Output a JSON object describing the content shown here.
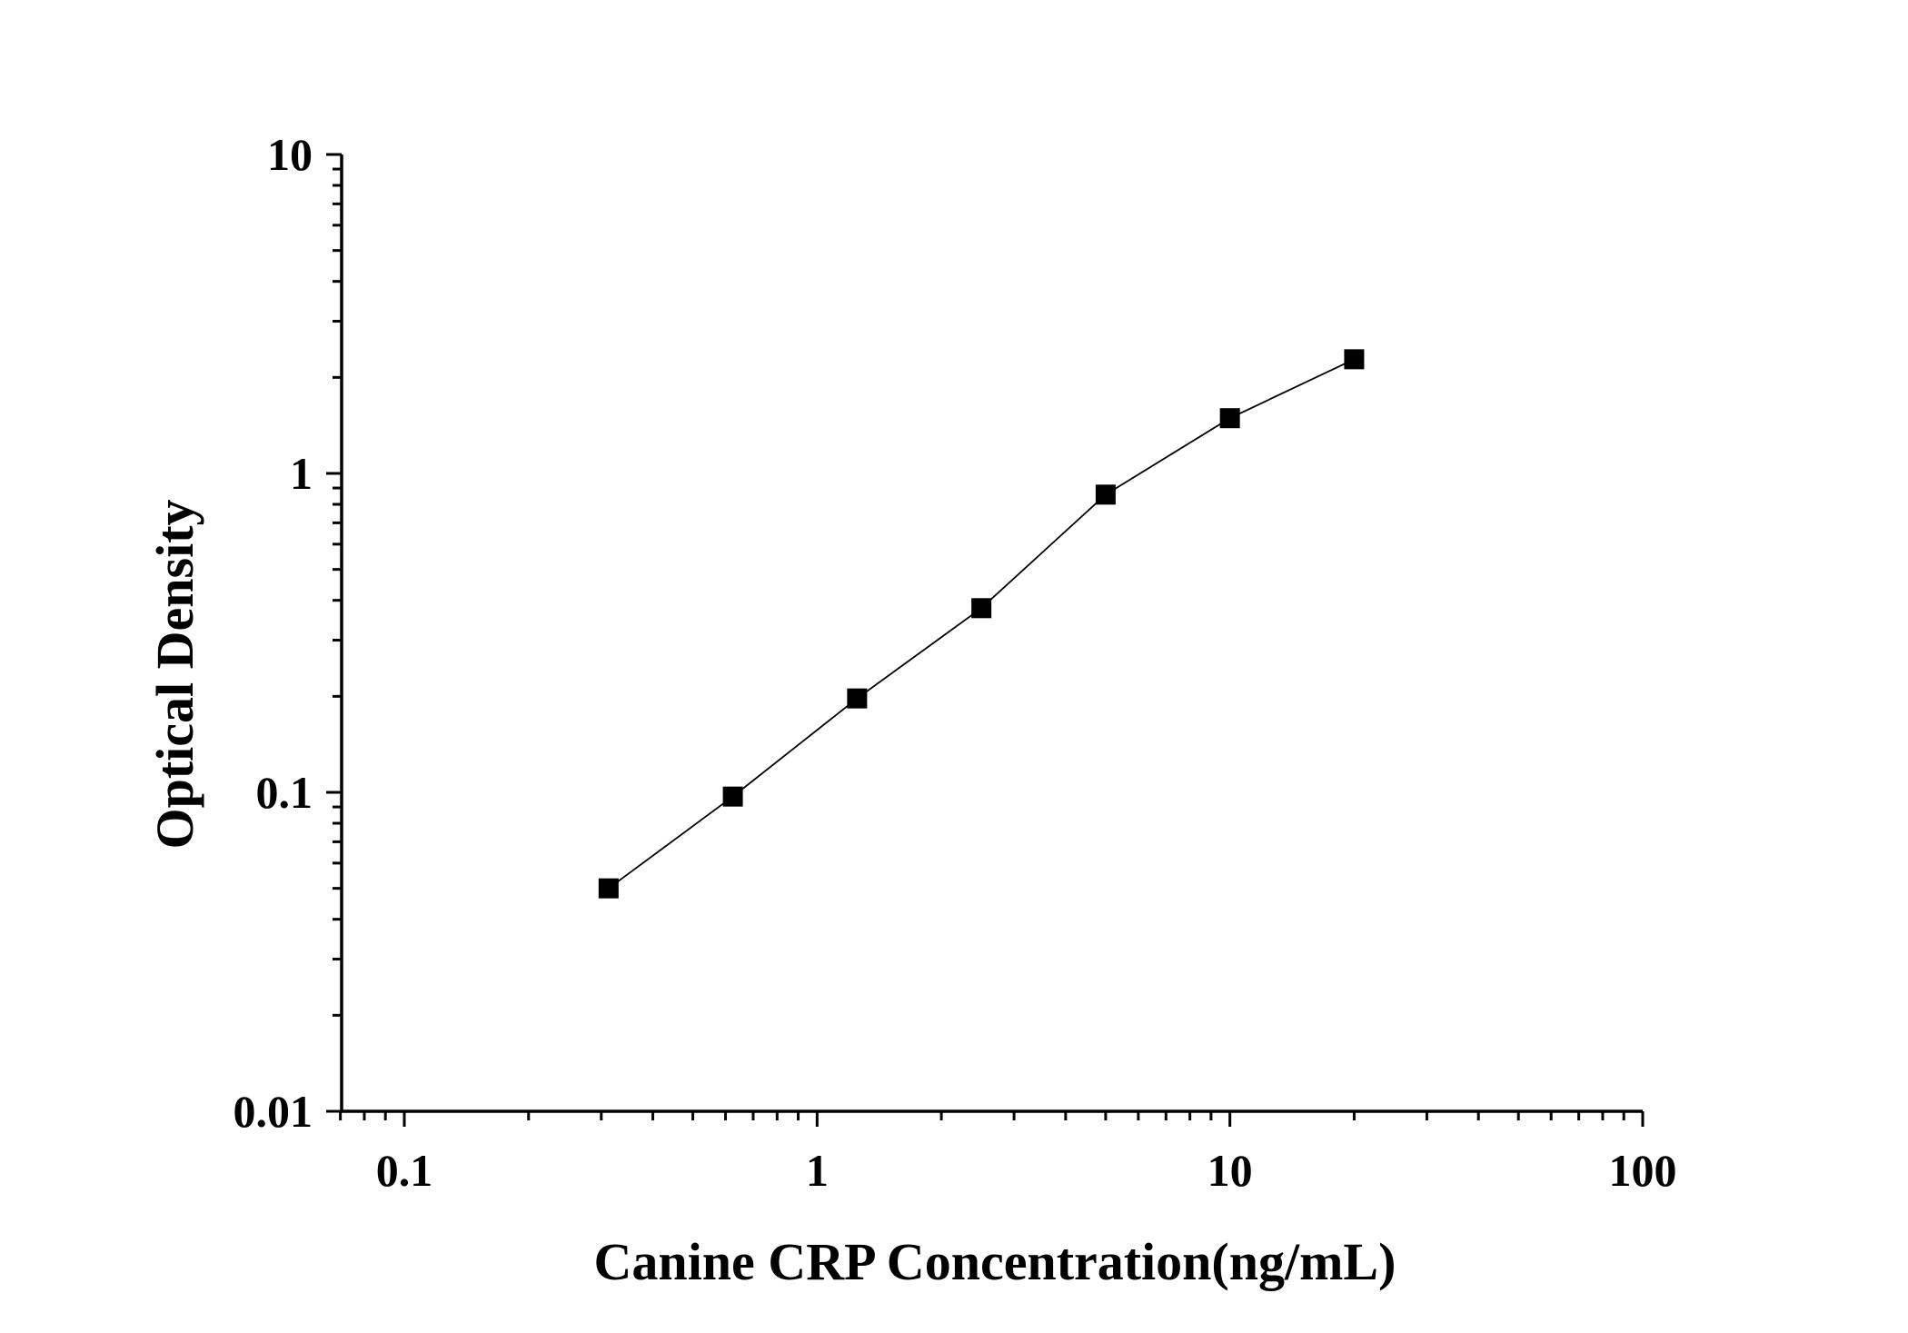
{
  "chart_data": {
    "type": "line",
    "title": "",
    "xlabel": "Canine CRP Concentration(ng/mL)",
    "ylabel": "Optical Density",
    "x_scale": "log",
    "y_scale": "log",
    "xlim": [
      0.07,
      100
    ],
    "ylim": [
      0.01,
      10
    ],
    "x_ticks": [
      {
        "value": 0.1,
        "label": "0.1"
      },
      {
        "value": 1,
        "label": "1"
      },
      {
        "value": 10,
        "label": "10"
      },
      {
        "value": 100,
        "label": "100"
      }
    ],
    "y_ticks": [
      {
        "value": 0.01,
        "label": "0.01"
      },
      {
        "value": 0.1,
        "label": "0.1"
      },
      {
        "value": 1,
        "label": "1"
      },
      {
        "value": 10,
        "label": "10"
      }
    ],
    "grid": false,
    "legend": "none",
    "marker": "square",
    "color": "#000000",
    "series": [
      {
        "x": [
          0.3125,
          0.625,
          1.25,
          2.5,
          5,
          10,
          20
        ],
        "y": [
          0.05,
          0.097,
          0.197,
          0.378,
          0.858,
          1.49,
          2.28
        ]
      }
    ]
  }
}
